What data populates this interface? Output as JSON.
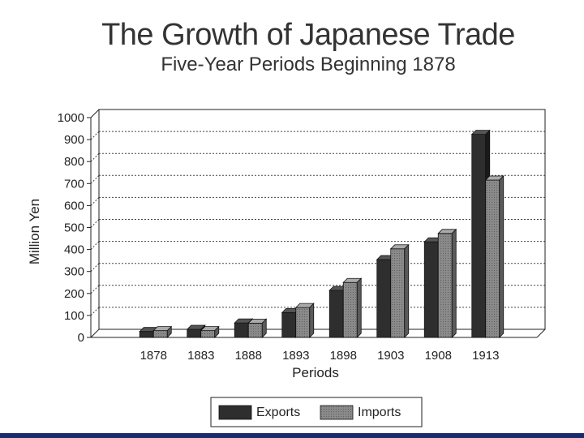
{
  "chart_data": {
    "type": "bar",
    "title": "The Growth of Japanese Trade",
    "subtitle": "Five-Year Periods Beginning 1878",
    "xlabel": "Periods",
    "ylabel": "Million Yen",
    "ylim": [
      0,
      1000
    ],
    "yticks": [
      "0",
      "100",
      "200",
      "300",
      "400",
      "500",
      "600",
      "700",
      "800",
      "900",
      "1000"
    ],
    "grid": true,
    "legend_position": "bottom-center",
    "categories": [
      "1878",
      "1883",
      "1888",
      "1893",
      "1898",
      "1903",
      "1908",
      "1913"
    ],
    "series": [
      {
        "name": "Exports",
        "color": "#2b2b2b",
        "values": [
          27,
          37,
          66,
          113,
          214,
          354,
          435,
          924
        ]
      },
      {
        "name": "Imports",
        "color": "#7a7a7a",
        "values": [
          31,
          31,
          65,
          136,
          250,
          403,
          473,
          716
        ]
      }
    ]
  }
}
